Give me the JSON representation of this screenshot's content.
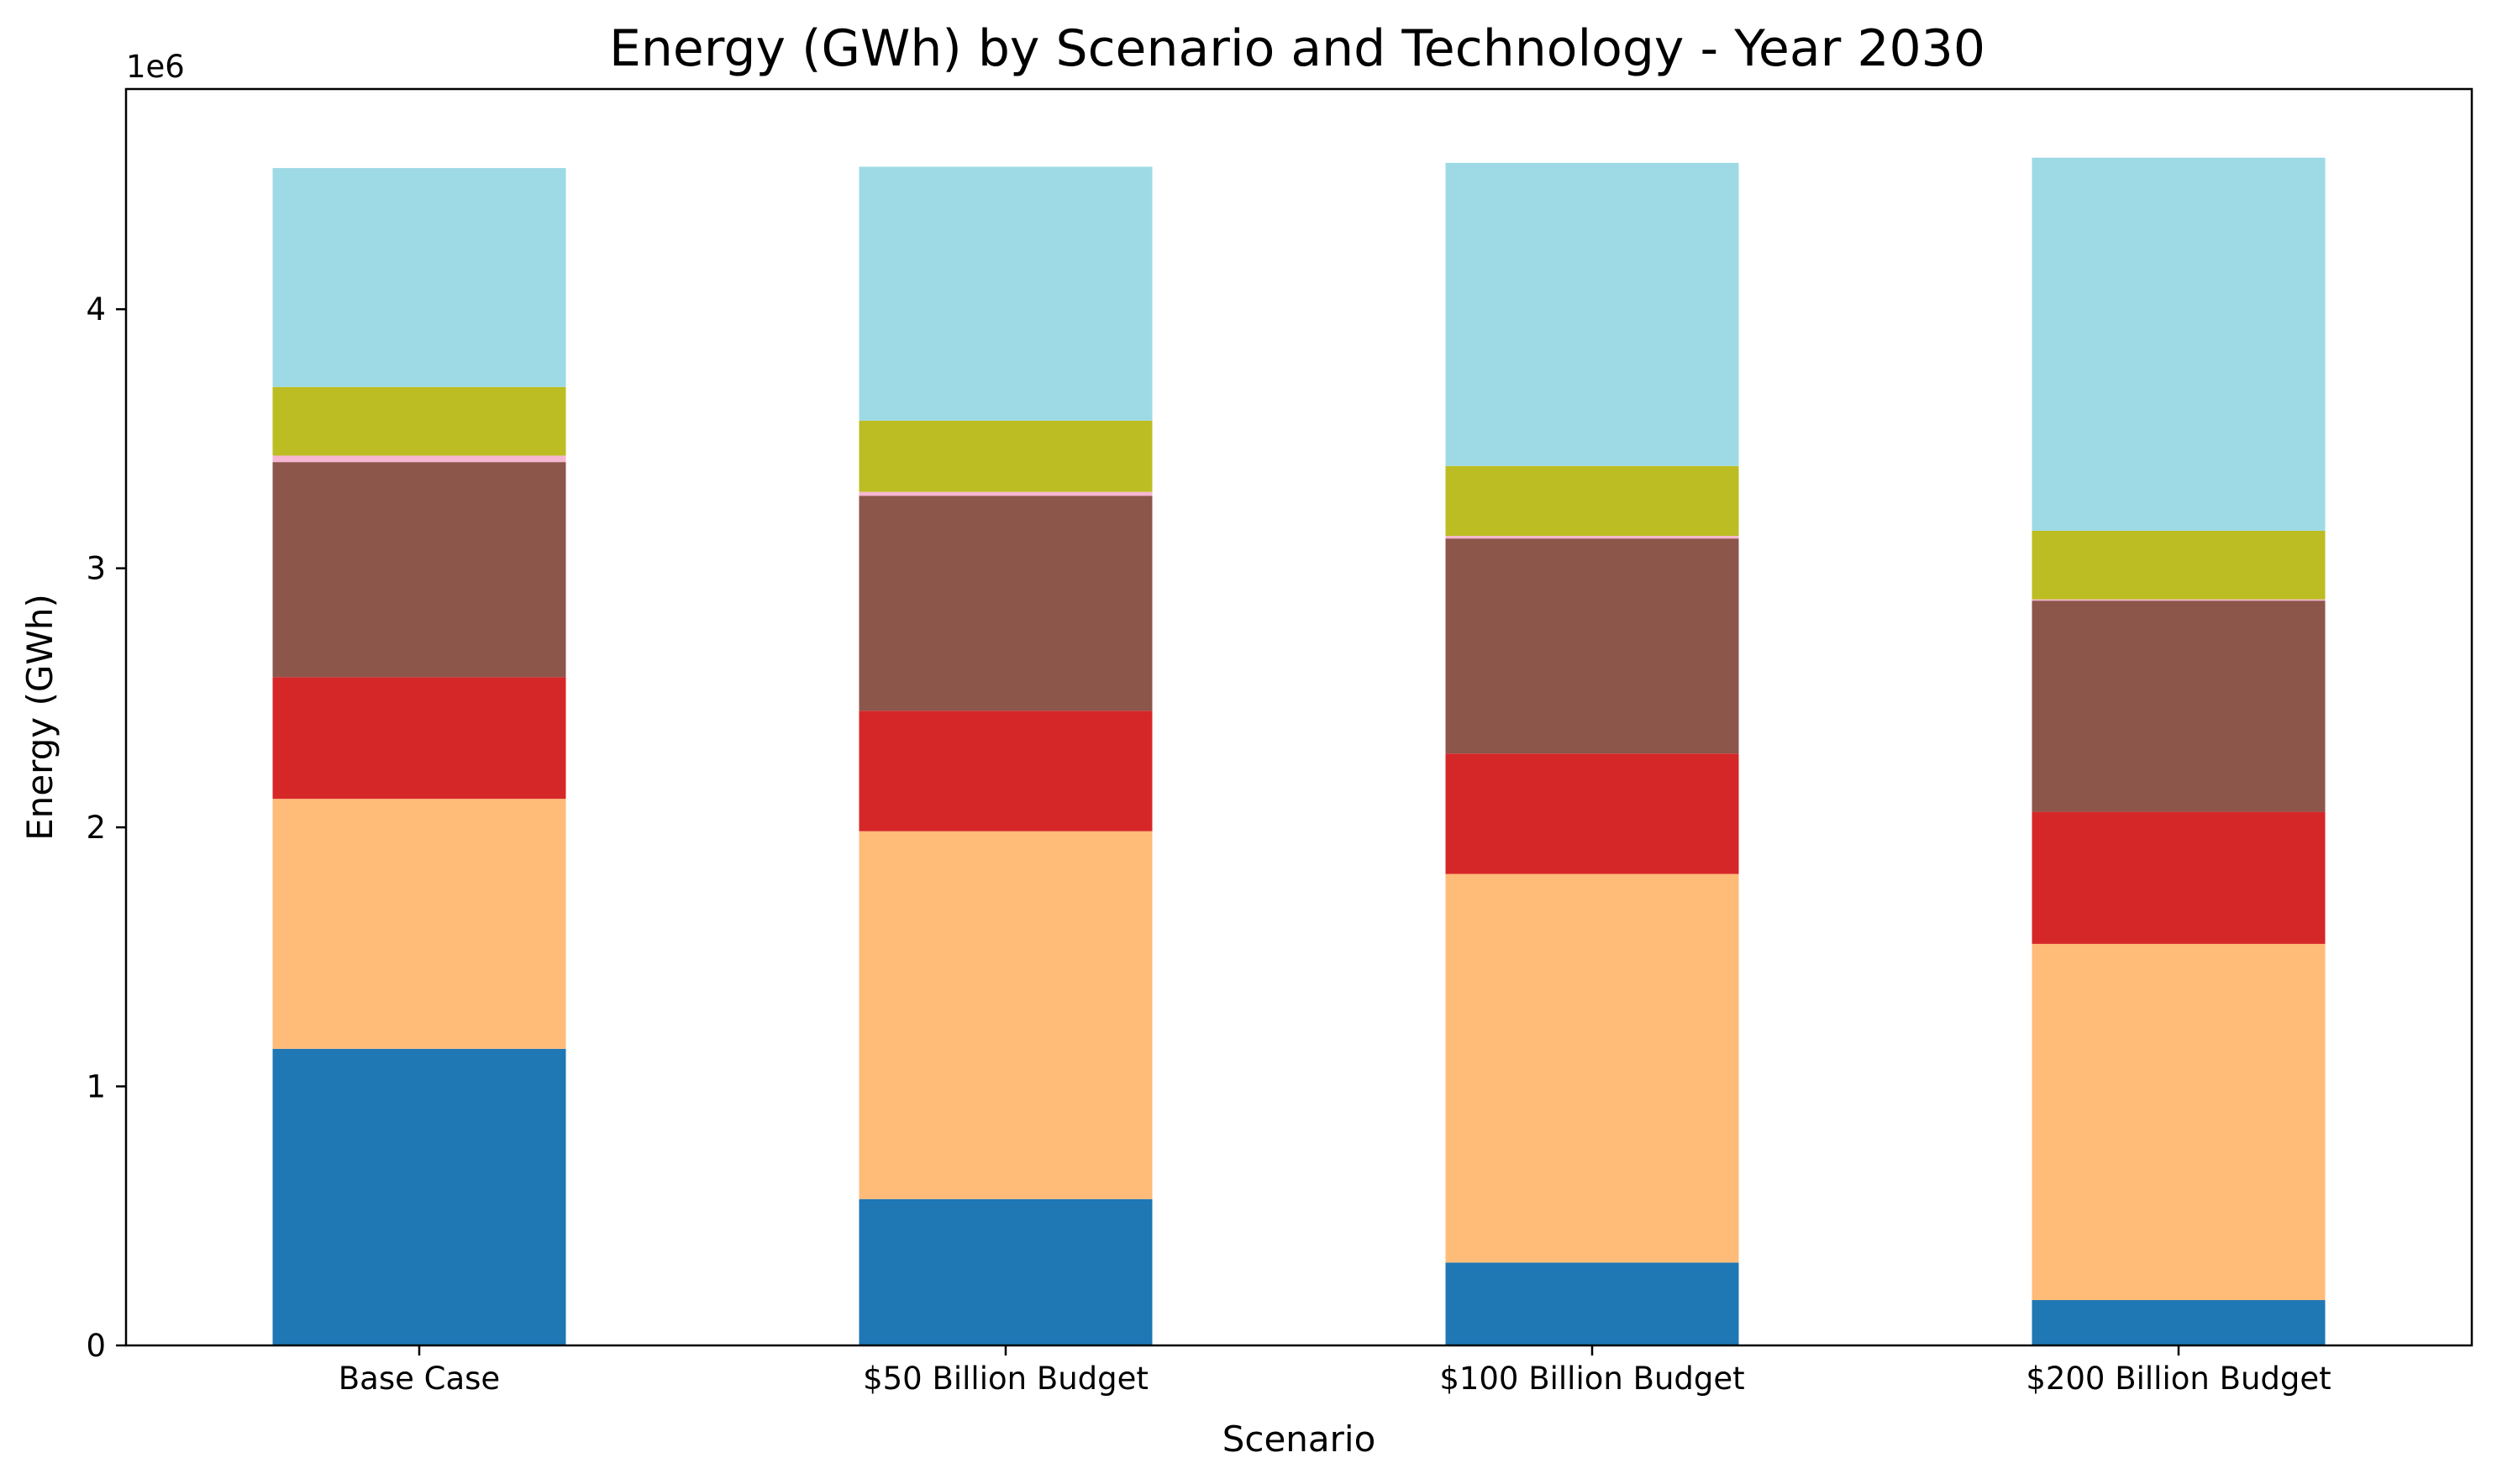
{
  "chart_data": {
    "type": "bar",
    "stacked": true,
    "title": "Energy (GWh) by Scenario and Technology - Year 2030",
    "xlabel": "Scenario",
    "ylabel": "Energy (GWh)",
    "y_offset_label": "1e6",
    "ylim": [
      0,
      4850000
    ],
    "yticks": [
      0,
      1000000,
      2000000,
      3000000,
      4000000
    ],
    "ytick_labels": [
      "0",
      "1",
      "2",
      "3",
      "4"
    ],
    "grid": false,
    "legend": "none",
    "categories": [
      "Base Case",
      "$50 Billion Budget",
      "$100 Billion Budget",
      "$200 Billion Budget"
    ],
    "series": [
      {
        "color": "#1f77b4",
        "values": [
          1145000,
          565000,
          320000,
          175000
        ]
      },
      {
        "color": "#ffbb78",
        "values": [
          965000,
          1420000,
          1500000,
          1375000
        ]
      },
      {
        "color": "#d62728",
        "values": [
          470000,
          465000,
          465000,
          510000
        ]
      },
      {
        "color": "#8c564b",
        "values": [
          830000,
          830000,
          830000,
          815000
        ]
      },
      {
        "color": "#f7b6d2",
        "values": [
          25000,
          15000,
          10000,
          5000
        ]
      },
      {
        "color": "#bcbd22",
        "values": [
          265000,
          275000,
          270000,
          265000
        ]
      },
      {
        "color": "#9edae5",
        "values": [
          845000,
          980000,
          1170000,
          1440000
        ]
      }
    ]
  }
}
